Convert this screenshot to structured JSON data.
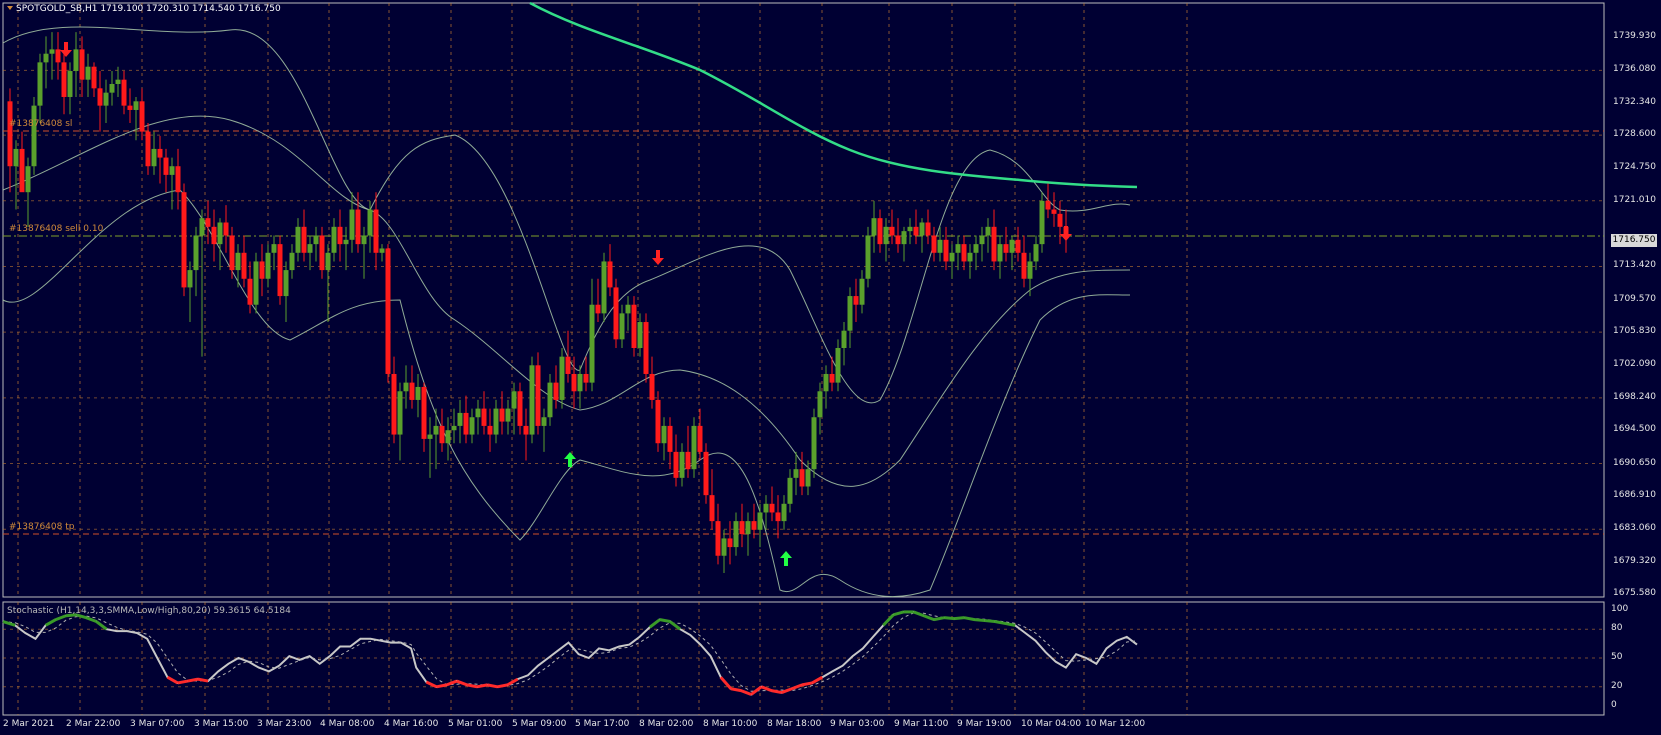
{
  "header": {
    "symbol_line": "SPOTGOLD_SB,H1  1719.100 1720.310 1714.540 1716.750"
  },
  "stochastic": {
    "label": "Stochastic (H1,14,3,3,SMMA,Low/High,80,20) 59.3615 64.5184",
    "levels": [
      "100",
      "80",
      "50",
      "20",
      "0"
    ]
  },
  "orders": {
    "sl_label": "#13876408 sl",
    "sell_label": "#13876408 sell 0.10",
    "tp_label": "#13876408 tp"
  },
  "price_axis": [
    "1739.930",
    "1736.080",
    "1732.340",
    "1728.600",
    "1724.750",
    "1721.010",
    "1716.750",
    "1713.420",
    "1709.570",
    "1705.830",
    "1702.090",
    "1698.240",
    "1694.500",
    "1690.650",
    "1686.910",
    "1683.060",
    "1679.320",
    "1675.580"
  ],
  "current_price": "1716.750",
  "time_axis": [
    "2 Mar 2021",
    "2 Mar 22:00",
    "3 Mar 07:00",
    "3 Mar 15:00",
    "3 Mar 23:00",
    "4 Mar 08:00",
    "4 Mar 16:00",
    "5 Mar 01:00",
    "5 Mar 09:00",
    "5 Mar 17:00",
    "8 Mar 02:00",
    "8 Mar 10:00",
    "8 Mar 18:00",
    "9 Mar 03:00",
    "9 Mar 11:00",
    "9 Mar 19:00",
    "10 Mar 04:00",
    "10 Mar 12:00"
  ],
  "colors": {
    "background": "#000033",
    "bull": "#5aa02c",
    "bear": "#ff1a1a",
    "ma": "#33dd88",
    "bands": "#a9c9a9",
    "grid": "#c07830",
    "stoch_main": "#c8c8c8",
    "stoch_high": "#3a9a28",
    "stoch_low": "#ff2a2a"
  }
}
